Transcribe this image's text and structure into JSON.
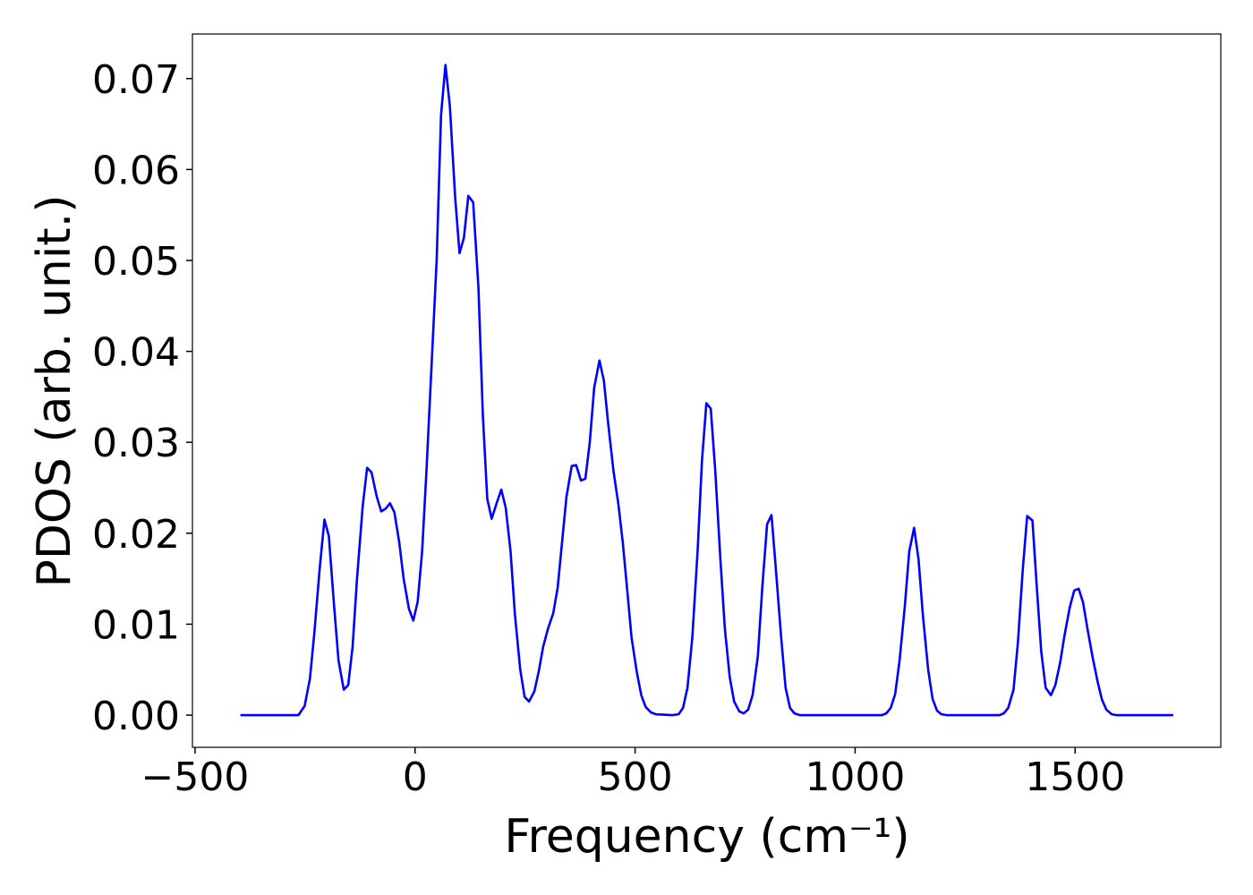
{
  "chart_data": {
    "type": "line",
    "xlabel": "Frequency (cm⁻¹)",
    "ylabel": "PDOS (arb. unit.)",
    "xlim": [
      -506,
      1831
    ],
    "ylim": [
      -0.00354,
      0.0749
    ],
    "xticks": [
      {
        "value": -500,
        "label": "−500"
      },
      0,
      500,
      1000,
      1500
    ],
    "yticks": [
      {
        "value": 0,
        "label": "0.00"
      },
      0.01,
      0.02,
      0.03,
      0.04,
      0.05,
      0.06,
      0.07
    ],
    "grid": false,
    "series": [
      {
        "color": "#0000ff",
        "x": [
          -397,
          -265,
          -251,
          -239,
          -229,
          -217,
          -206,
          -196,
          -184,
          -174,
          -162,
          -152,
          -142,
          -132,
          -119,
          -109,
          -99,
          -87,
          -77,
          -67,
          -57,
          -47,
          -36,
          -26,
          -14,
          -4,
          6,
          16,
          26,
          36,
          49,
          59,
          69,
          79,
          91,
          101,
          111,
          121,
          132,
          144,
          154,
          164,
          174,
          186,
          196,
          206,
          217,
          227,
          239,
          249,
          259,
          271,
          281,
          291,
          302,
          314,
          324,
          334,
          344,
          356,
          366,
          377,
          387,
          397,
          407,
          419,
          429,
          439,
          451,
          462,
          472,
          482,
          492,
          504,
          514,
          524,
          536,
          547,
          585,
          599,
          609,
          619,
          630,
          642,
          652,
          662,
          672,
          682,
          694,
          704,
          715,
          725,
          737,
          747,
          757,
          767,
          779,
          789,
          800,
          810,
          820,
          832,
          842,
          852,
          862,
          874,
          1061,
          1071,
          1081,
          1091,
          1101,
          1113,
          1123,
          1134,
          1144,
          1154,
          1166,
          1176,
          1186,
          1196,
          1208,
          1328,
          1338,
          1348,
          1360,
          1370,
          1381,
          1391,
          1403,
          1413,
          1423,
          1433,
          1445,
          1455,
          1466,
          1476,
          1488,
          1498,
          1508,
          1518,
          1528,
          1540,
          1551,
          1561,
          1571,
          1583,
          1593,
          1723
        ],
        "values": [
          0,
          0,
          0.001,
          0.004,
          0.009,
          0.016,
          0.0215,
          0.0197,
          0.012,
          0.006,
          0.0028,
          0.0033,
          0.0075,
          0.015,
          0.023,
          0.0272,
          0.0267,
          0.024,
          0.0224,
          0.0227,
          0.0233,
          0.0223,
          0.019,
          0.015,
          0.0117,
          0.0104,
          0.0125,
          0.018,
          0.027,
          0.037,
          0.05,
          0.066,
          0.0715,
          0.067,
          0.057,
          0.0508,
          0.0525,
          0.0571,
          0.0564,
          0.047,
          0.033,
          0.0238,
          0.0216,
          0.0234,
          0.0248,
          0.0228,
          0.018,
          0.011,
          0.005,
          0.002,
          0.0015,
          0.0026,
          0.0048,
          0.0075,
          0.0095,
          0.0112,
          0.014,
          0.019,
          0.024,
          0.0274,
          0.0275,
          0.0258,
          0.026,
          0.03,
          0.036,
          0.039,
          0.0368,
          0.032,
          0.0268,
          0.0232,
          0.019,
          0.0138,
          0.0085,
          0.0047,
          0.0022,
          0.0009,
          0.0003,
          0.0001,
          0,
          0.0001,
          0.0008,
          0.003,
          0.0085,
          0.018,
          0.028,
          0.0343,
          0.0337,
          0.027,
          0.017,
          0.0095,
          0.0042,
          0.0015,
          0.0004,
          0.0002,
          0.0006,
          0.0022,
          0.0065,
          0.014,
          0.021,
          0.022,
          0.016,
          0.0085,
          0.003,
          0.0008,
          0.0002,
          0,
          0,
          0.0002,
          0.0008,
          0.0023,
          0.006,
          0.012,
          0.018,
          0.0206,
          0.0172,
          0.011,
          0.005,
          0.0018,
          0.0005,
          0.0001,
          0,
          0,
          0.0002,
          0.0008,
          0.0028,
          0.008,
          0.016,
          0.0219,
          0.0214,
          0.014,
          0.007,
          0.003,
          0.0022,
          0.0033,
          0.0058,
          0.0088,
          0.0119,
          0.0137,
          0.0139,
          0.0124,
          0.0095,
          0.0063,
          0.0037,
          0.0017,
          0.0006,
          0.0001,
          0,
          0
        ]
      }
    ]
  }
}
